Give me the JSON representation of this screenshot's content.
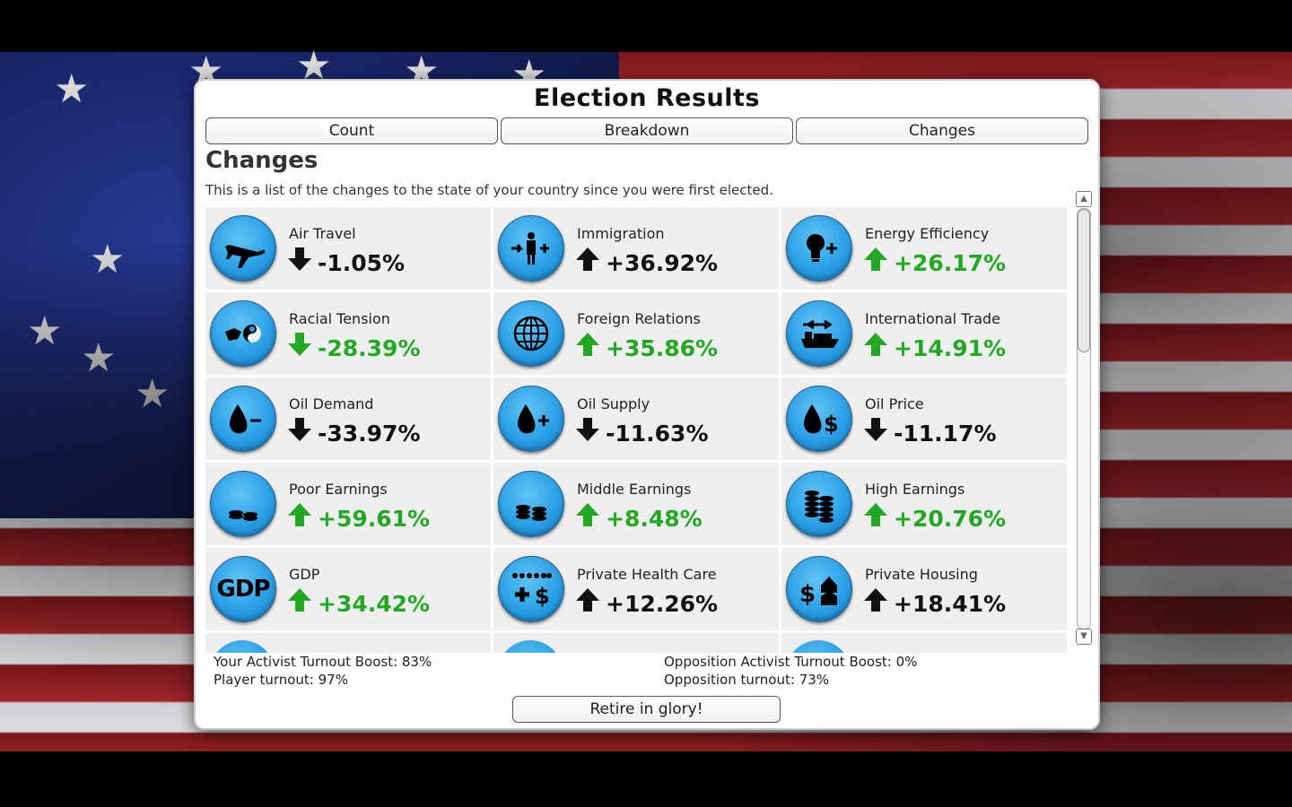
{
  "dialog": {
    "title": "Election Results",
    "tabs": [
      "Count",
      "Breakdown",
      "Changes"
    ],
    "active_tab": "Changes",
    "section_title": "Changes",
    "description": "This is a list of the changes to the state of your country since you were first elected."
  },
  "changes": [
    {
      "label": "Air Travel",
      "value": "-1.05%",
      "direction": "down",
      "color": "black",
      "icon": "airplane-icon"
    },
    {
      "label": "Immigration",
      "value": "+36.92%",
      "direction": "up",
      "color": "black",
      "icon": "immigration-icon"
    },
    {
      "label": "Energy Efficiency",
      "value": "+26.17%",
      "direction": "up",
      "color": "green",
      "icon": "lightbulb-plus-icon"
    },
    {
      "label": "Racial Tension",
      "value": "-28.39%",
      "direction": "down",
      "color": "green",
      "icon": "racial-tension-icon"
    },
    {
      "label": "Foreign Relations",
      "value": "+35.86%",
      "direction": "up",
      "color": "green",
      "icon": "globe-icon"
    },
    {
      "label": "International Trade",
      "value": "+14.91%",
      "direction": "up",
      "color": "green",
      "icon": "cargo-ship-icon"
    },
    {
      "label": "Oil Demand",
      "value": "-33.97%",
      "direction": "down",
      "color": "black",
      "icon": "oil-drop-minus-icon"
    },
    {
      "label": "Oil Supply",
      "value": "-11.63%",
      "direction": "down",
      "color": "black",
      "icon": "oil-drop-plus-icon"
    },
    {
      "label": "Oil Price",
      "value": "-11.17%",
      "direction": "down",
      "color": "black",
      "icon": "oil-drop-dollar-icon"
    },
    {
      "label": "Poor Earnings",
      "value": "+59.61%",
      "direction": "up",
      "color": "green",
      "icon": "coins-small-icon"
    },
    {
      "label": "Middle Earnings",
      "value": "+8.48%",
      "direction": "up",
      "color": "green",
      "icon": "coins-medium-icon"
    },
    {
      "label": "High Earnings",
      "value": "+20.76%",
      "direction": "up",
      "color": "green",
      "icon": "coins-large-icon"
    },
    {
      "label": "GDP",
      "value": "+34.42%",
      "direction": "up",
      "color": "green",
      "icon": "gdp-icon",
      "icon_text": "GDP"
    },
    {
      "label": "Private Health Care",
      "value": "+12.26%",
      "direction": "up",
      "color": "black",
      "icon": "health-dollar-icon"
    },
    {
      "label": "Private Housing",
      "value": "+18.41%",
      "direction": "up",
      "color": "black",
      "icon": "housing-dollar-icon"
    }
  ],
  "stats": {
    "your_activist_boost": "Your Activist Turnout Boost: 83%",
    "player_turnout": "Player turnout: 97%",
    "opposition_activist_boost": "Opposition Activist Turnout Boost: 0%",
    "opposition_turnout": "Opposition turnout: 73%"
  },
  "retire_button": "Retire in glory!",
  "colors": {
    "green": "#22a822",
    "black": "#111111",
    "icon_blue": "#2aa0e6"
  }
}
